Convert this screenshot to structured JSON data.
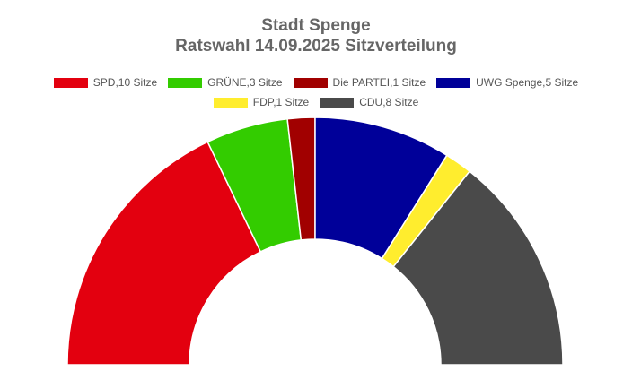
{
  "chart_data": {
    "type": "pie",
    "variant": "half-donut",
    "title": "Stadt Spenge",
    "subtitle": "Ratswahl 14.09.2025 Sitzverteilung",
    "legend_position": "top-center",
    "series": [
      {
        "name": "SPD,10 Sitze",
        "party": "SPD",
        "value": 10,
        "color": "#e3000f"
      },
      {
        "name": "GRÜNE,3 Sitze",
        "party": "GRÜNE",
        "value": 3,
        "color": "#33cc00"
      },
      {
        "name": "Die PARTEI,1 Sitze",
        "party": "Die PARTEI",
        "value": 1,
        "color": "#a10000"
      },
      {
        "name": "UWG Spenge,5 Sitze",
        "party": "UWG Spenge",
        "value": 5,
        "color": "#000099"
      },
      {
        "name": "FDP,1 Sitze",
        "party": "FDP",
        "value": 1,
        "color": "#ffed2e"
      },
      {
        "name": "CDU,8 Sitze",
        "party": "CDU",
        "value": 8,
        "color": "#4a4a4a"
      }
    ],
    "total": 28
  }
}
